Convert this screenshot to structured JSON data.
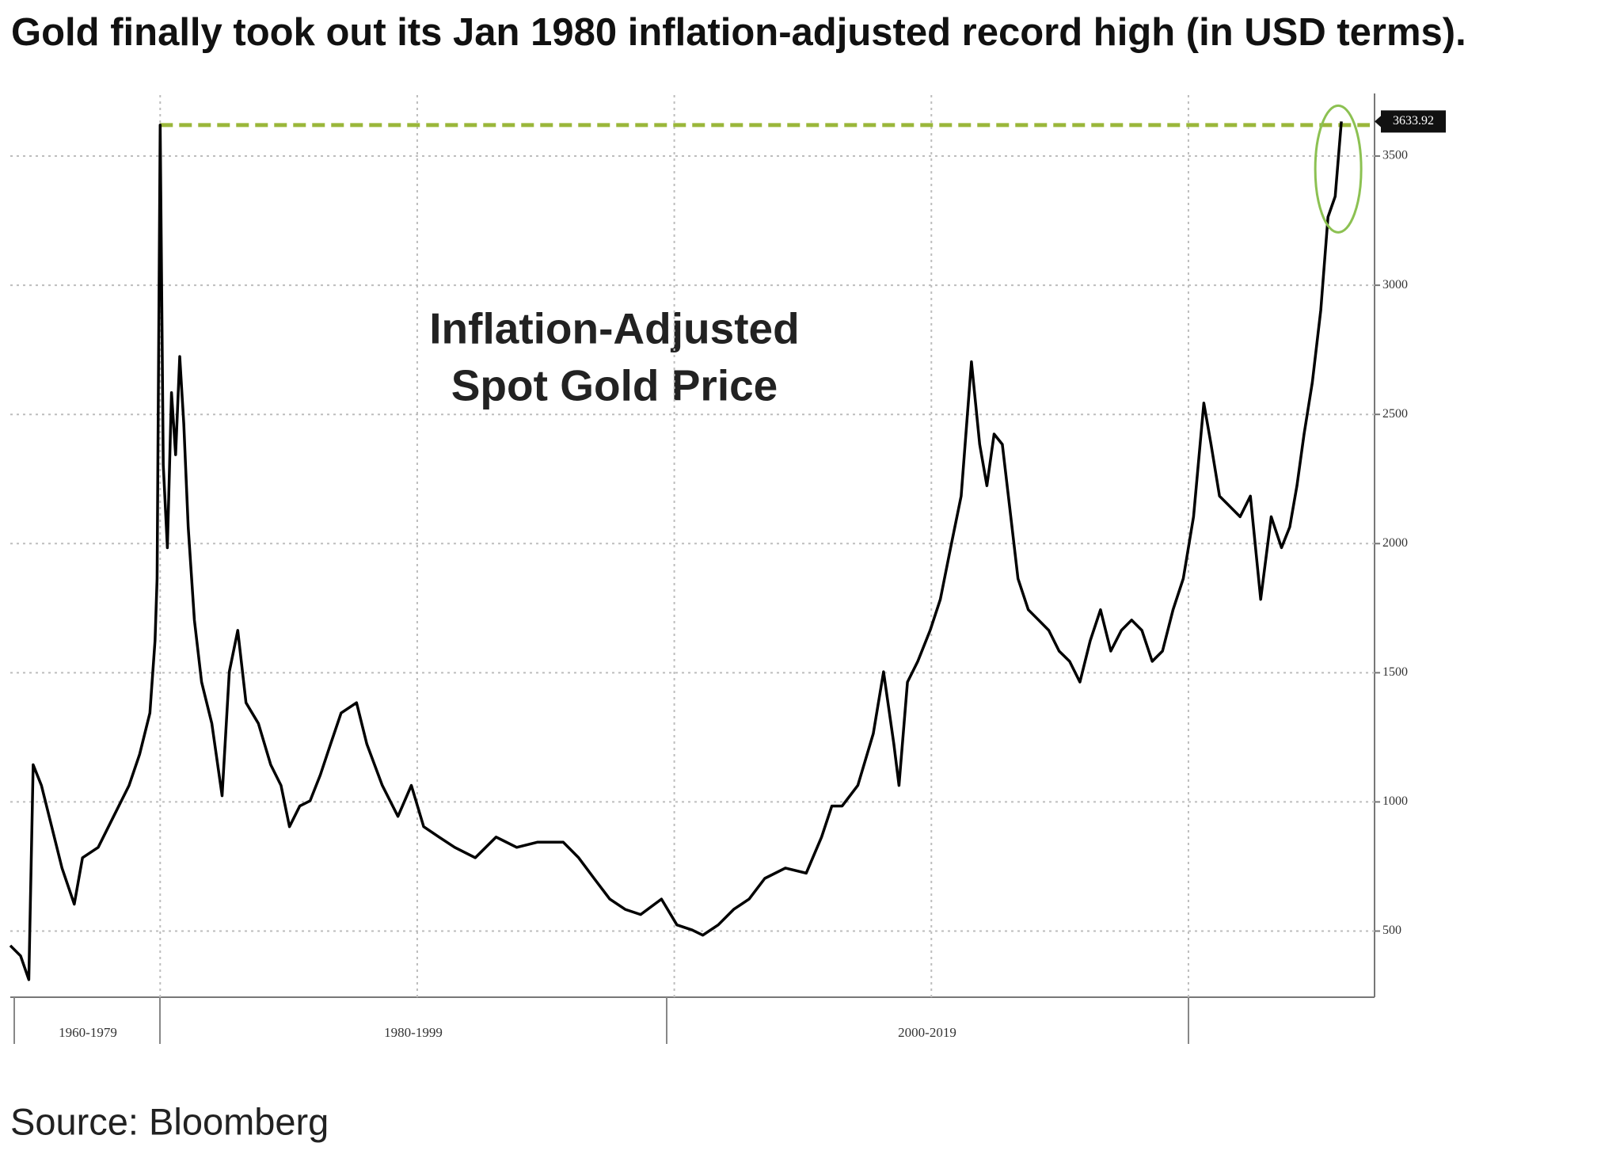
{
  "chart_data": {
    "type": "line",
    "title": "Gold finally took out its Jan 1980 inflation-adjusted record high (in USD terms).",
    "annotation": [
      "Inflation-Adjusted",
      "Spot Gold Price"
    ],
    "source": "Source: Bloomberg",
    "period_labels": [
      "1960-1979",
      "1980-1999",
      "2000-2019"
    ],
    "xlim": [
      1974.17,
      2027.24
    ],
    "xgrid": [
      1980,
      1990,
      2000,
      2010,
      2020
    ],
    "ylim": [
      244,
      3724
    ],
    "yticks": [
      500,
      1000,
      1500,
      2000,
      2500,
      3000,
      3500
    ],
    "grid": true,
    "record_line_color": "#9ab73a",
    "highlight_color": "#8cc152",
    "x": [
      1974.17,
      1974.57,
      1974.89,
      1975.06,
      1975.38,
      1975.78,
      1976.18,
      1976.66,
      1976.98,
      1977.59,
      1978.19,
      1978.79,
      1979.2,
      1979.6,
      1979.8,
      1979.88,
      1980.0,
      1980.12,
      1980.28,
      1980.44,
      1980.6,
      1980.76,
      1980.92,
      1981.09,
      1981.33,
      1981.61,
      1982.01,
      1982.41,
      1982.69,
      1983.02,
      1983.34,
      1983.82,
      1984.3,
      1984.7,
      1985.03,
      1985.43,
      1985.83,
      1986.23,
      1986.63,
      1987.04,
      1987.64,
      1988.04,
      1988.64,
      1989.25,
      1989.77,
      1990.25,
      1990.85,
      1991.46,
      1992.26,
      1993.07,
      1993.87,
      1994.67,
      1995.68,
      1996.28,
      1996.88,
      1997.49,
      1998.09,
      1998.69,
      1999.5,
      2000.1,
      2000.7,
      2001.11,
      2001.71,
      2002.31,
      2002.91,
      2003.52,
      2004.32,
      2005.13,
      2005.73,
      2006.13,
      2006.53,
      2007.14,
      2007.74,
      2008.14,
      2008.54,
      2008.74,
      2009.07,
      2009.47,
      2009.95,
      2010.35,
      2010.75,
      2011.16,
      2011.56,
      2011.88,
      2012.16,
      2012.44,
      2012.76,
      2013.09,
      2013.37,
      2013.77,
      2014.17,
      2014.57,
      2014.97,
      2015.38,
      2015.78,
      2016.18,
      2016.58,
      2016.98,
      2017.39,
      2017.79,
      2018.19,
      2018.59,
      2018.99,
      2019.4,
      2019.8,
      2020.2,
      2020.6,
      2020.88,
      2021.21,
      2021.61,
      2022.01,
      2022.41,
      2022.81,
      2023.22,
      2023.62,
      2023.94,
      2024.22,
      2024.5,
      2024.82,
      2025.15,
      2025.43,
      2025.71,
      2025.95
    ],
    "series": [
      {
        "color": "#000000",
        "values": [
          444,
          404,
          312,
          1144,
          1064,
          904,
          744,
          604,
          784,
          824,
          944,
          1064,
          1184,
          1344,
          1624,
          1864,
          3620,
          2304,
          1984,
          2584,
          2344,
          2724,
          2464,
          2064,
          1704,
          1464,
          1304,
          1024,
          1504,
          1664,
          1384,
          1304,
          1144,
          1064,
          904,
          984,
          1004,
          1104,
          1224,
          1344,
          1384,
          1224,
          1064,
          944,
          1064,
          904,
          864,
          824,
          784,
          864,
          824,
          844,
          844,
          784,
          704,
          624,
          584,
          564,
          624,
          524,
          504,
          484,
          524,
          584,
          624,
          704,
          744,
          724,
          864,
          984,
          984,
          1064,
          1264,
          1504,
          1224,
          1064,
          1464,
          1544,
          1664,
          1784,
          1984,
          2184,
          2704,
          2384,
          2224,
          2424,
          2384,
          2104,
          1864,
          1744,
          1704,
          1664,
          1584,
          1544,
          1464,
          1624,
          1744,
          1584,
          1664,
          1704,
          1664,
          1544,
          1584,
          1744,
          1864,
          2104,
          2544,
          2384,
          2184,
          2144,
          2104,
          2184,
          1784,
          2104,
          1984,
          2064,
          2224,
          2424,
          2624,
          2904,
          3264,
          3344,
          3633.92
        ]
      }
    ]
  }
}
